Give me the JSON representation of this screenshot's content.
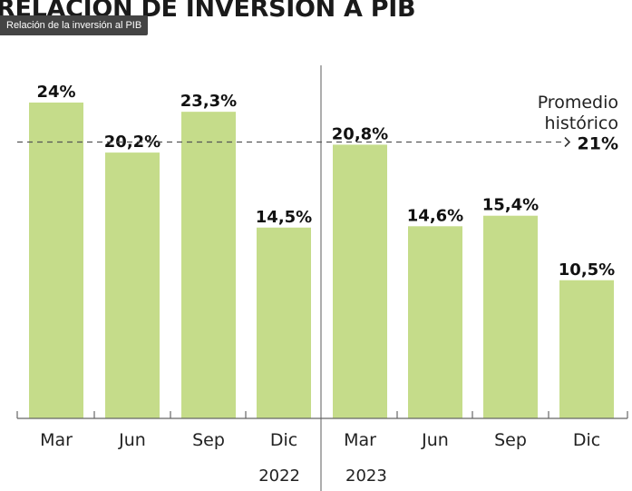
{
  "title": "RELACIÓN DE INVERSIÓN A PIB",
  "tooltip": "Relación de la inversión al PIB",
  "chart_data": {
    "type": "bar",
    "title": "RELACIÓN DE INVERSIÓN A PIB",
    "categories": [
      "Mar",
      "Jun",
      "Sep",
      "Dic",
      "Mar",
      "Jun",
      "Sep",
      "Dic"
    ],
    "groups": [
      {
        "label": "2022",
        "categories": [
          "Mar",
          "Jun",
          "Sep",
          "Dic"
        ]
      },
      {
        "label": "2023",
        "categories": [
          "Mar",
          "Jun",
          "Sep",
          "Dic"
        ]
      }
    ],
    "values": [
      24,
      20.2,
      23.3,
      14.5,
      20.8,
      14.6,
      15.4,
      10.5
    ],
    "value_labels": [
      "24%",
      "20,2%",
      "23,3%",
      "14,5%",
      "20,8%",
      "14,6%",
      "15,4%",
      "10,5%"
    ],
    "unit": "%",
    "ylim": [
      0,
      24
    ],
    "bar_color": "#c5dc8a",
    "reference_line": {
      "value": 21,
      "label_line1": "Promedio",
      "label_line2": "histórico",
      "value_label": "21%",
      "style": "dashed"
    }
  }
}
